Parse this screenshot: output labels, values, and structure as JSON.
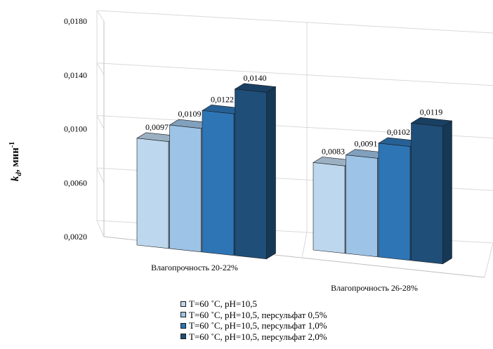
{
  "chart_data": {
    "type": "bar",
    "title": "",
    "xlabel": "",
    "ylabel_main": "k",
    "ylabel_sub": "d",
    "ylabel_unit": ", мин",
    "ylabel_sup": "-1",
    "ylim": [
      0.002,
      0.018
    ],
    "yticks": [
      0.002,
      0.006,
      0.01,
      0.014,
      0.018
    ],
    "ytick_labels": [
      "0,0020",
      "0,0060",
      "0,0100",
      "0,0140",
      "0,0180"
    ],
    "grid": true,
    "legend_position": "bottom",
    "categories": [
      "Влагопрочность 20-22%",
      "Влагопрочность 26-28%"
    ],
    "series": [
      {
        "name": "T=60 ˚С, рН=10,5",
        "color": "#bdd7ee",
        "values": [
          0.0097,
          0.0083
        ],
        "labels": [
          "0,0097",
          "0,0083"
        ]
      },
      {
        "name": "T=60 ˚С, рН=10,5, персульфат 0,5%",
        "color": "#9dc3e6",
        "values": [
          0.0109,
          0.0091
        ],
        "labels": [
          "0,0109",
          "0,0091"
        ]
      },
      {
        "name": "T=60 ˚С, рН=10,5, персульфат 1,0%",
        "color": "#2e75b6",
        "values": [
          0.0122,
          0.0102
        ],
        "labels": [
          "0,0122",
          "0,0102"
        ]
      },
      {
        "name": "T=60 ˚С, рН=10,5, персульфат 2,0%",
        "color": "#1f4e79",
        "values": [
          0.014,
          0.0119
        ],
        "labels": [
          "0,0140",
          "0,0119"
        ]
      }
    ]
  }
}
